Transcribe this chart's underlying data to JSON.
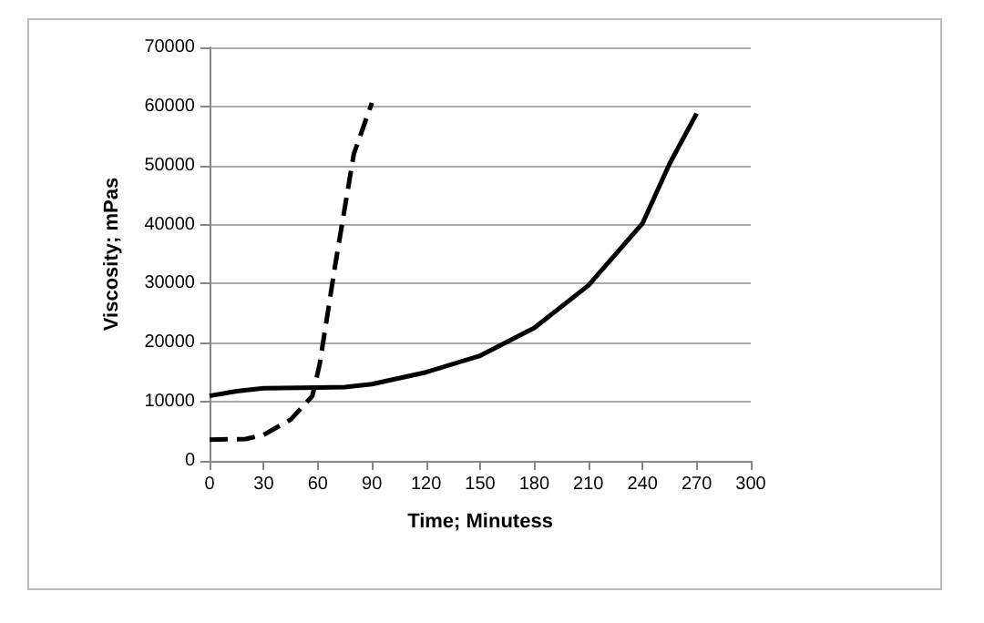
{
  "chart_data": {
    "type": "line",
    "xlabel": "Time; Minutess",
    "ylabel": "Viscosity; mPas",
    "series": [
      {
        "color": "#000000",
        "line_style": "solid",
        "x": [
          0,
          15,
          30,
          60,
          75,
          90,
          120,
          150,
          180,
          210,
          240,
          255,
          270
        ],
        "values": [
          11000,
          11800,
          12300,
          12400,
          12500,
          13000,
          15000,
          17800,
          22500,
          29700,
          40200,
          50300,
          58800
        ]
      },
      {
        "color": "#000000",
        "line_style": "dashed",
        "x": [
          0,
          20,
          30,
          45,
          57,
          61,
          70,
          80,
          90
        ],
        "values": [
          3600,
          3700,
          4400,
          7000,
          11000,
          16300,
          33800,
          52000,
          60600
        ]
      }
    ],
    "xlim": [
      0,
      300
    ],
    "xticks": [
      0,
      30,
      60,
      90,
      120,
      150,
      180,
      210,
      240,
      270,
      300
    ],
    "ylim": [
      0,
      70000
    ],
    "yticks": [
      0,
      10000,
      20000,
      30000,
      40000,
      50000,
      60000,
      70000
    ],
    "grid": "y",
    "marker": "none"
  }
}
